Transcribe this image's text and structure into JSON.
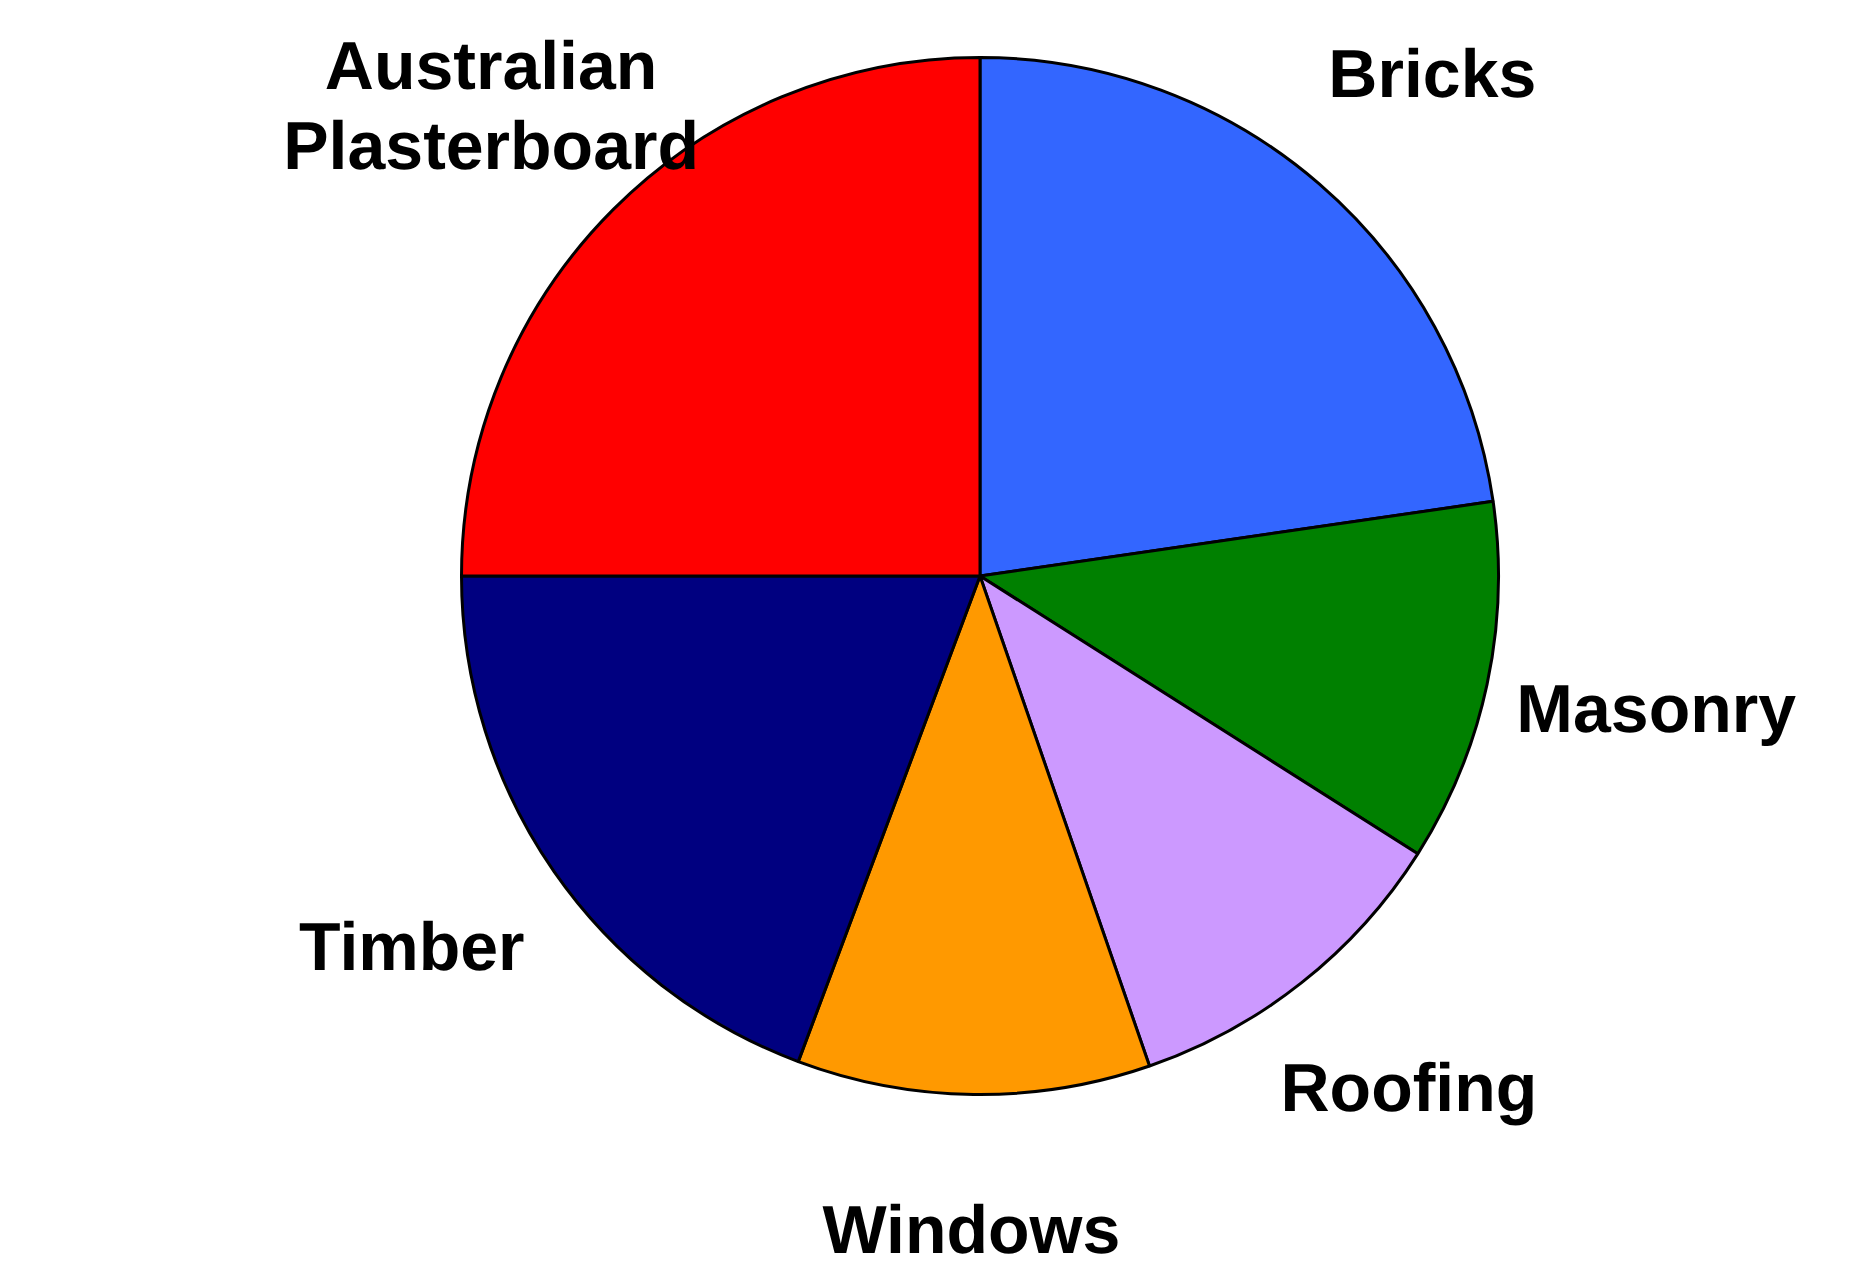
{
  "chart_data": {
    "type": "pie",
    "categories": [
      "Bricks",
      "Masonry",
      "Roofing",
      "Windows",
      "Timber",
      "Australian Plasterboard"
    ],
    "values": [
      22.7,
      11.3,
      10.7,
      11.0,
      19.3,
      25.0
    ],
    "colors": [
      "#3366ff",
      "#008000",
      "#cc99ff",
      "#ff9900",
      "#000080",
      "#ff0000"
    ],
    "legend": false
  }
}
